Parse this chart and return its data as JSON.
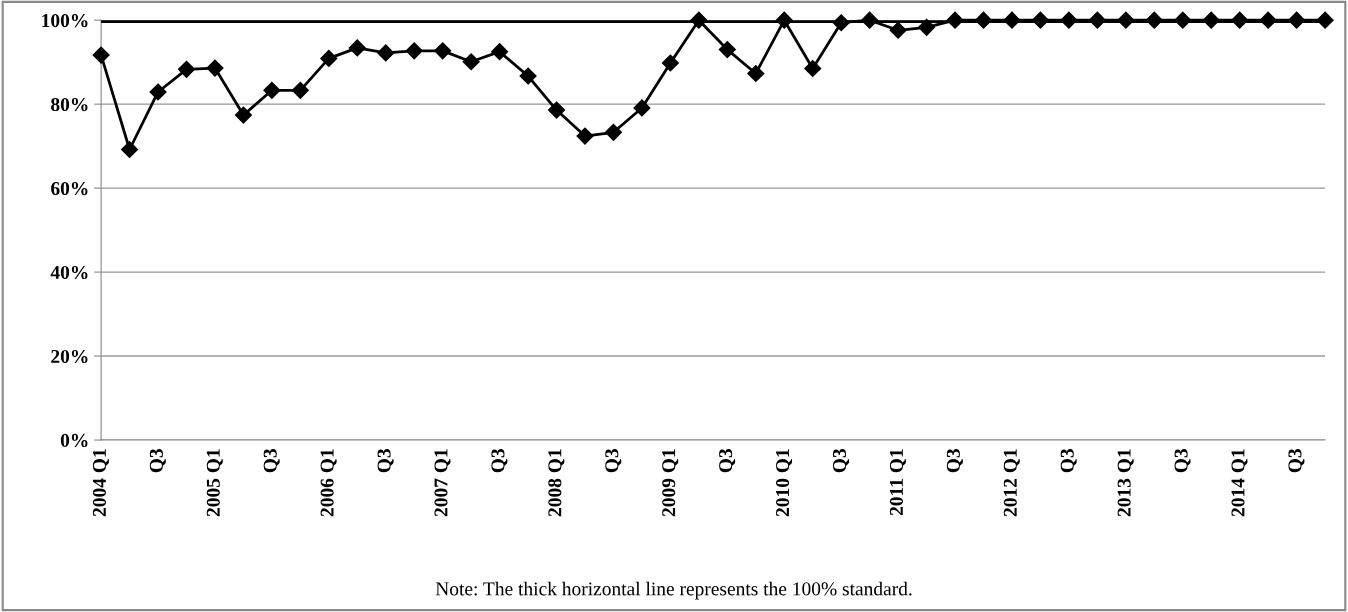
{
  "chart_data": {
    "type": "line",
    "categories": [
      "2004 Q1",
      null,
      "Q3",
      null,
      "2005 Q1",
      null,
      "Q3",
      null,
      "2006 Q1",
      null,
      "Q3",
      null,
      "2007 Q1",
      null,
      "Q3",
      null,
      "2008 Q1",
      null,
      "Q3",
      null,
      "2009 Q1",
      null,
      "Q3",
      null,
      "2010 Q1",
      null,
      "Q3",
      null,
      "2011 Q1",
      null,
      "Q3",
      null,
      "2012 Q1",
      null,
      "Q3",
      null,
      "2013 Q1",
      null,
      "Q3",
      null,
      "2014 Q1",
      null,
      "Q3",
      null
    ],
    "series": [
      {
        "color": "#000000",
        "values": [
          91.7,
          69.2,
          82.9,
          88.3,
          88.6,
          77.4,
          83.3,
          83.3,
          90.9,
          93.4,
          92.2,
          92.7,
          92.7,
          90.1,
          92.5,
          86.7,
          78.6,
          72.4,
          73.3,
          79.1,
          89.8,
          100,
          93.0,
          87.3,
          100,
          88.5,
          99.4,
          100,
          97.6,
          98.3,
          100,
          100,
          100,
          100,
          100,
          100,
          100,
          100,
          100,
          100,
          100,
          100,
          100,
          100
        ]
      }
    ],
    "ylim": [
      0,
      100
    ],
    "yticks": [
      {
        "value": 0,
        "label": "0%"
      },
      {
        "value": 20,
        "label": "20%"
      },
      {
        "value": 40,
        "label": "40%"
      },
      {
        "value": 60,
        "label": "60%"
      },
      {
        "value": 80,
        "label": "80%"
      },
      {
        "value": 100,
        "label": "100%"
      }
    ],
    "grid": "y",
    "marker": "diamond",
    "line_style": "solid",
    "ref_lines": [
      {
        "axis": "y",
        "value": 100,
        "label": null,
        "color": "#000000"
      }
    ],
    "annotations": [
      "Note: The thick horizontal line represents the 100% standard."
    ]
  }
}
